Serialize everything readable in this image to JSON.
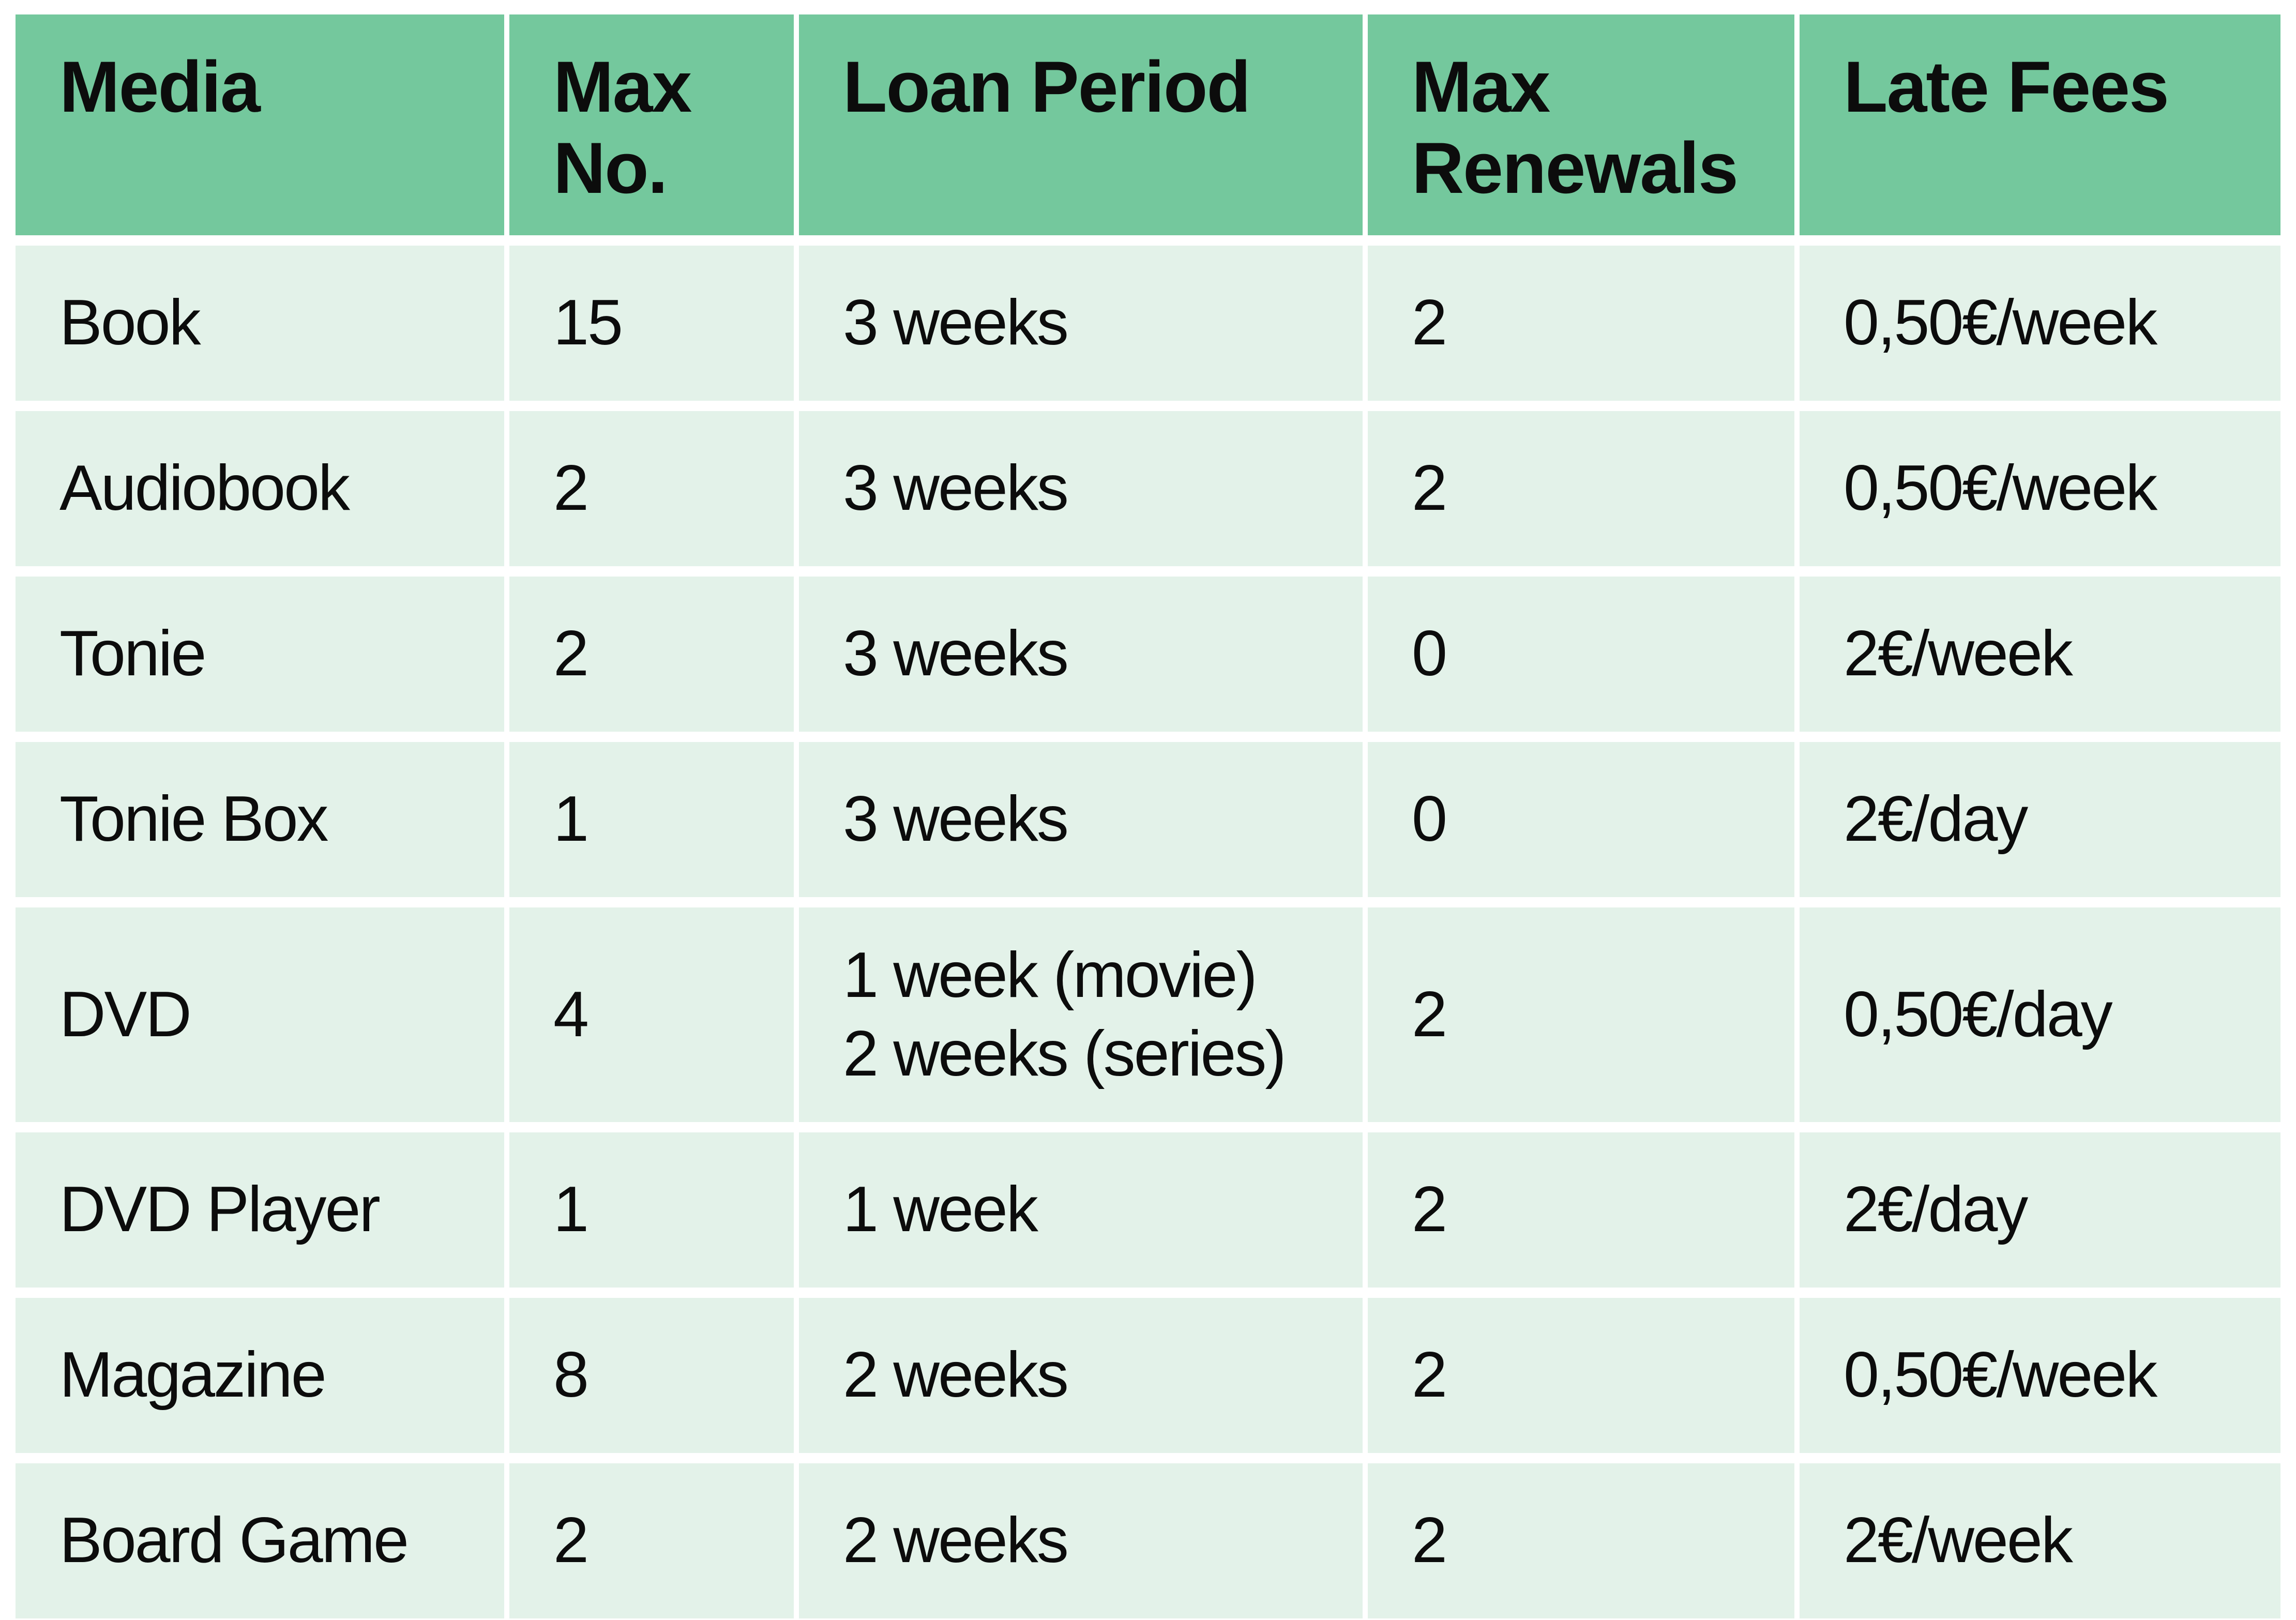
{
  "chart_data": {
    "type": "table",
    "columns": [
      "Media",
      "Max No.",
      "Loan Period",
      "Max Renewals",
      "Late Fees"
    ],
    "rows": [
      [
        "Book",
        "15",
        "3 weeks",
        "2",
        "0,50€/week"
      ],
      [
        "Audiobook",
        "2",
        "3 weeks",
        "2",
        "0,50€/week"
      ],
      [
        "Tonie",
        "2",
        "3 weeks",
        "0",
        "2€/week"
      ],
      [
        "Tonie Box",
        "1",
        "3 weeks",
        "0",
        "2€/day"
      ],
      [
        "DVD",
        "4",
        "1 week (movie)\n2 weeks (series)",
        "2",
        "0,50€/day"
      ],
      [
        "DVD Player",
        "1",
        "1 week",
        "2",
        "2€/day"
      ],
      [
        "Magazine",
        "8",
        "2 weeks",
        "2",
        "0,50€/week"
      ],
      [
        "Board Game",
        "2",
        "2 weeks",
        "2",
        "2€/week"
      ]
    ]
  },
  "colors": {
    "header_bg": "#74c89d",
    "row_bg": "#e3f2e9",
    "separator": "#ffffff",
    "text": "#0c0c0c"
  }
}
